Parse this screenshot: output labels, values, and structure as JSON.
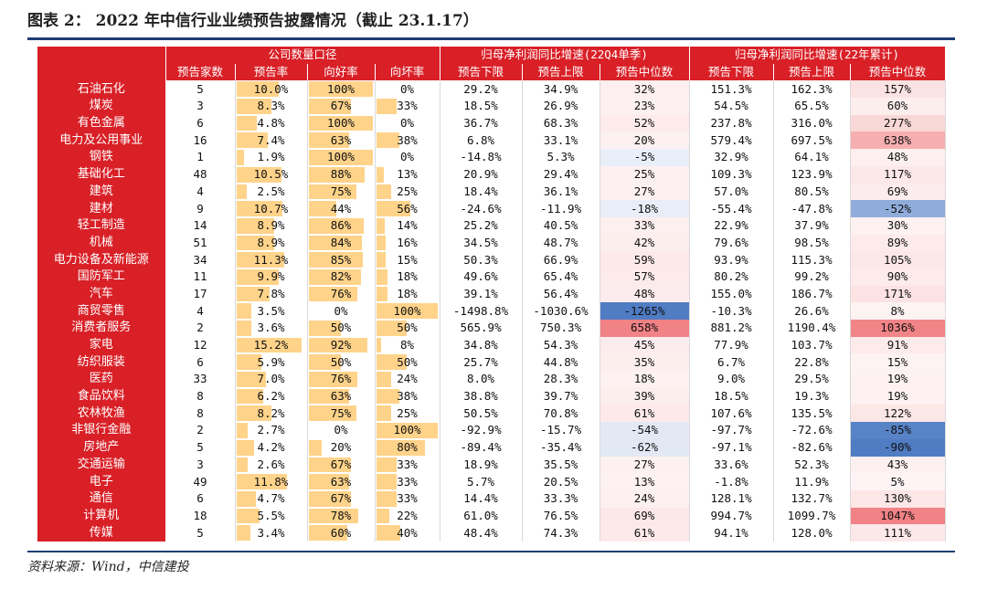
{
  "title": "图表 2： 2022 年中信行业业绩预告披露情况（截止 23.1.17）",
  "source": "资料来源：Wind，中信建投",
  "groups": [
    "公司数量口径",
    "归母净利润同比增速(22Q4单季)",
    "归母净利润同比增速(22年累计)"
  ],
  "columns": [
    "预告家数",
    "预告率",
    "向好率",
    "向坏率",
    "预告下限",
    "预告上限",
    "预告中位数",
    "预告下限",
    "预告上限",
    "预告中位数"
  ],
  "colors": {
    "header_red": "#d92027",
    "bar": "#ffd38a",
    "pos": "#f0797c",
    "neg": "#4a78c2"
  },
  "rows": [
    {
      "name": "石油石化",
      "count": "5",
      "rate": "10.0%",
      "good": "100%",
      "bad": "0%",
      "q4_lo": "29.2%",
      "q4_hi": "34.9%",
      "q4_mid": "32%",
      "y_lo": "151.3%",
      "y_hi": "162.3%",
      "y_mid": "157%"
    },
    {
      "name": "煤炭",
      "count": "3",
      "rate": "8.3%",
      "good": "67%",
      "bad": "33%",
      "q4_lo": "18.5%",
      "q4_hi": "26.9%",
      "q4_mid": "23%",
      "y_lo": "54.5%",
      "y_hi": "65.5%",
      "y_mid": "60%"
    },
    {
      "name": "有色金属",
      "count": "6",
      "rate": "4.8%",
      "good": "100%",
      "bad": "0%",
      "q4_lo": "36.7%",
      "q4_hi": "68.3%",
      "q4_mid": "52%",
      "y_lo": "237.8%",
      "y_hi": "316.0%",
      "y_mid": "277%"
    },
    {
      "name": "电力及公用事业",
      "count": "16",
      "rate": "7.4%",
      "good": "63%",
      "bad": "38%",
      "q4_lo": "6.8%",
      "q4_hi": "33.1%",
      "q4_mid": "20%",
      "y_lo": "579.4%",
      "y_hi": "697.5%",
      "y_mid": "638%"
    },
    {
      "name": "钢铁",
      "count": "1",
      "rate": "1.9%",
      "good": "100%",
      "bad": "0%",
      "q4_lo": "-14.8%",
      "q4_hi": "5.3%",
      "q4_mid": "-5%",
      "y_lo": "32.9%",
      "y_hi": "64.1%",
      "y_mid": "48%"
    },
    {
      "name": "基础化工",
      "count": "48",
      "rate": "10.5%",
      "good": "88%",
      "bad": "13%",
      "q4_lo": "20.9%",
      "q4_hi": "29.4%",
      "q4_mid": "25%",
      "y_lo": "109.3%",
      "y_hi": "123.9%",
      "y_mid": "117%"
    },
    {
      "name": "建筑",
      "count": "4",
      "rate": "2.5%",
      "good": "75%",
      "bad": "25%",
      "q4_lo": "18.4%",
      "q4_hi": "36.1%",
      "q4_mid": "27%",
      "y_lo": "57.0%",
      "y_hi": "80.5%",
      "y_mid": "69%"
    },
    {
      "name": "建材",
      "count": "9",
      "rate": "10.7%",
      "good": "44%",
      "bad": "56%",
      "q4_lo": "-24.6%",
      "q4_hi": "-11.9%",
      "q4_mid": "-18%",
      "y_lo": "-55.4%",
      "y_hi": "-47.8%",
      "y_mid": "-52%"
    },
    {
      "name": "轻工制造",
      "count": "14",
      "rate": "8.9%",
      "good": "86%",
      "bad": "14%",
      "q4_lo": "25.2%",
      "q4_hi": "40.5%",
      "q4_mid": "33%",
      "y_lo": "22.9%",
      "y_hi": "37.9%",
      "y_mid": "30%"
    },
    {
      "name": "机械",
      "count": "51",
      "rate": "8.9%",
      "good": "84%",
      "bad": "16%",
      "q4_lo": "34.5%",
      "q4_hi": "48.7%",
      "q4_mid": "42%",
      "y_lo": "79.6%",
      "y_hi": "98.5%",
      "y_mid": "89%"
    },
    {
      "name": "电力设备及新能源",
      "count": "34",
      "rate": "11.3%",
      "good": "85%",
      "bad": "15%",
      "q4_lo": "50.3%",
      "q4_hi": "66.9%",
      "q4_mid": "59%",
      "y_lo": "93.9%",
      "y_hi": "115.3%",
      "y_mid": "105%"
    },
    {
      "name": "国防军工",
      "count": "11",
      "rate": "9.9%",
      "good": "82%",
      "bad": "18%",
      "q4_lo": "49.6%",
      "q4_hi": "65.4%",
      "q4_mid": "57%",
      "y_lo": "80.2%",
      "y_hi": "99.2%",
      "y_mid": "90%"
    },
    {
      "name": "汽车",
      "count": "17",
      "rate": "7.8%",
      "good": "76%",
      "bad": "18%",
      "q4_lo": "39.1%",
      "q4_hi": "56.4%",
      "q4_mid": "48%",
      "y_lo": "155.0%",
      "y_hi": "186.7%",
      "y_mid": "171%"
    },
    {
      "name": "商贸零售",
      "count": "4",
      "rate": "3.5%",
      "good": "0%",
      "bad": "100%",
      "q4_lo": "-1498.8%",
      "q4_hi": "-1030.6%",
      "q4_mid": "-1265%",
      "y_lo": "-10.3%",
      "y_hi": "26.6%",
      "y_mid": "8%"
    },
    {
      "name": "消费者服务",
      "count": "2",
      "rate": "3.6%",
      "good": "50%",
      "bad": "50%",
      "q4_lo": "565.9%",
      "q4_hi": "750.3%",
      "q4_mid": "658%",
      "y_lo": "881.2%",
      "y_hi": "1190.4%",
      "y_mid": "1036%"
    },
    {
      "name": "家电",
      "count": "12",
      "rate": "15.2%",
      "good": "92%",
      "bad": "8%",
      "q4_lo": "34.8%",
      "q4_hi": "54.3%",
      "q4_mid": "45%",
      "y_lo": "77.9%",
      "y_hi": "103.7%",
      "y_mid": "91%"
    },
    {
      "name": "纺织服装",
      "count": "6",
      "rate": "5.9%",
      "good": "50%",
      "bad": "50%",
      "q4_lo": "25.7%",
      "q4_hi": "44.8%",
      "q4_mid": "35%",
      "y_lo": "6.7%",
      "y_hi": "22.8%",
      "y_mid": "15%"
    },
    {
      "name": "医药",
      "count": "33",
      "rate": "7.0%",
      "good": "76%",
      "bad": "24%",
      "q4_lo": "8.0%",
      "q4_hi": "28.3%",
      "q4_mid": "18%",
      "y_lo": "9.0%",
      "y_hi": "29.5%",
      "y_mid": "19%"
    },
    {
      "name": "食品饮料",
      "count": "8",
      "rate": "6.2%",
      "good": "63%",
      "bad": "38%",
      "q4_lo": "38.8%",
      "q4_hi": "39.7%",
      "q4_mid": "39%",
      "y_lo": "18.5%",
      "y_hi": "19.3%",
      "y_mid": "19%"
    },
    {
      "name": "农林牧渔",
      "count": "8",
      "rate": "8.2%",
      "good": "75%",
      "bad": "25%",
      "q4_lo": "50.5%",
      "q4_hi": "70.8%",
      "q4_mid": "61%",
      "y_lo": "107.6%",
      "y_hi": "135.5%",
      "y_mid": "122%"
    },
    {
      "name": "非银行金融",
      "count": "2",
      "rate": "2.7%",
      "good": "0%",
      "bad": "100%",
      "q4_lo": "-92.9%",
      "q4_hi": "-15.7%",
      "q4_mid": "-54%",
      "y_lo": "-97.7%",
      "y_hi": "-72.6%",
      "y_mid": "-85%"
    },
    {
      "name": "房地产",
      "count": "5",
      "rate": "4.2%",
      "good": "20%",
      "bad": "80%",
      "q4_lo": "-89.4%",
      "q4_hi": "-35.4%",
      "q4_mid": "-62%",
      "y_lo": "-97.1%",
      "y_hi": "-82.6%",
      "y_mid": "-90%"
    },
    {
      "name": "交通运输",
      "count": "3",
      "rate": "2.6%",
      "good": "67%",
      "bad": "33%",
      "q4_lo": "18.9%",
      "q4_hi": "35.5%",
      "q4_mid": "27%",
      "y_lo": "33.6%",
      "y_hi": "52.3%",
      "y_mid": "43%"
    },
    {
      "name": "电子",
      "count": "49",
      "rate": "11.8%",
      "good": "63%",
      "bad": "33%",
      "q4_lo": "5.7%",
      "q4_hi": "20.5%",
      "q4_mid": "13%",
      "y_lo": "-1.8%",
      "y_hi": "11.9%",
      "y_mid": "5%"
    },
    {
      "name": "通信",
      "count": "6",
      "rate": "4.7%",
      "good": "67%",
      "bad": "33%",
      "q4_lo": "14.4%",
      "q4_hi": "33.3%",
      "q4_mid": "24%",
      "y_lo": "128.1%",
      "y_hi": "132.7%",
      "y_mid": "130%"
    },
    {
      "name": "计算机",
      "count": "18",
      "rate": "5.5%",
      "good": "78%",
      "bad": "22%",
      "q4_lo": "61.0%",
      "q4_hi": "76.5%",
      "q4_mid": "69%",
      "y_lo": "994.7%",
      "y_hi": "1099.7%",
      "y_mid": "1047%"
    },
    {
      "name": "传媒",
      "count": "5",
      "rate": "3.4%",
      "good": "60%",
      "bad": "40%",
      "q4_lo": "48.4%",
      "q4_hi": "74.3%",
      "q4_mid": "61%",
      "y_lo": "94.1%",
      "y_hi": "128.0%",
      "y_mid": "111%"
    }
  ]
}
